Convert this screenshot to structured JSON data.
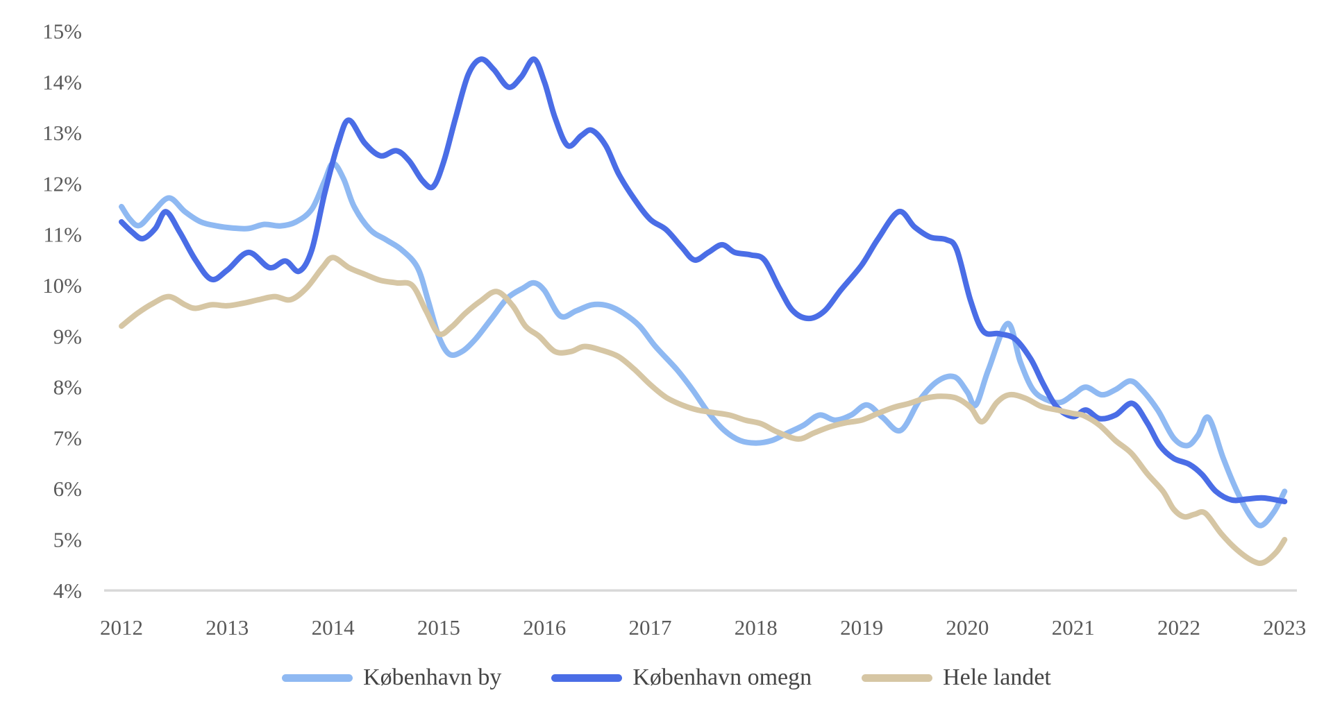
{
  "chart_data": {
    "type": "line",
    "title": "",
    "xlabel": "",
    "ylabel": "",
    "grid": false,
    "legend_position": "bottom",
    "x_ticks": [
      2012,
      2013,
      2014,
      2015,
      2016,
      2017,
      2018,
      2019,
      2020,
      2021,
      2022,
      2023
    ],
    "y_ticks": [
      "15%",
      "14%",
      "13%",
      "12%",
      "11%",
      "10%",
      "9%",
      "8%",
      "7%",
      "6%",
      "5%",
      "4%"
    ],
    "y_tick_values": [
      15,
      14,
      13,
      12,
      11,
      10,
      9,
      8,
      7,
      6,
      5,
      4
    ],
    "ylim": [
      4,
      15
    ],
    "xlim": [
      2012,
      2023
    ],
    "axis_line_color": "#d9d9d9",
    "tick_label_color": "#595959",
    "series": [
      {
        "name": "København by",
        "color": "#8fb9f2",
        "points": [
          [
            2012.0,
            11.55
          ],
          [
            2012.08,
            11.3
          ],
          [
            2012.17,
            11.18
          ],
          [
            2012.3,
            11.45
          ],
          [
            2012.45,
            11.72
          ],
          [
            2012.6,
            11.45
          ],
          [
            2012.75,
            11.25
          ],
          [
            2012.9,
            11.17
          ],
          [
            2013.05,
            11.13
          ],
          [
            2013.2,
            11.12
          ],
          [
            2013.35,
            11.2
          ],
          [
            2013.5,
            11.17
          ],
          [
            2013.65,
            11.25
          ],
          [
            2013.8,
            11.5
          ],
          [
            2013.92,
            12.05
          ],
          [
            2014.0,
            12.4
          ],
          [
            2014.1,
            12.1
          ],
          [
            2014.2,
            11.55
          ],
          [
            2014.35,
            11.1
          ],
          [
            2014.5,
            10.9
          ],
          [
            2014.65,
            10.7
          ],
          [
            2014.8,
            10.35
          ],
          [
            2014.9,
            9.7
          ],
          [
            2015.0,
            9.0
          ],
          [
            2015.1,
            8.65
          ],
          [
            2015.22,
            8.7
          ],
          [
            2015.35,
            8.95
          ],
          [
            2015.5,
            9.35
          ],
          [
            2015.65,
            9.75
          ],
          [
            2015.8,
            9.95
          ],
          [
            2015.9,
            10.05
          ],
          [
            2016.0,
            9.9
          ],
          [
            2016.15,
            9.4
          ],
          [
            2016.3,
            9.5
          ],
          [
            2016.45,
            9.62
          ],
          [
            2016.6,
            9.6
          ],
          [
            2016.75,
            9.45
          ],
          [
            2016.9,
            9.2
          ],
          [
            2017.05,
            8.8
          ],
          [
            2017.25,
            8.35
          ],
          [
            2017.4,
            7.95
          ],
          [
            2017.55,
            7.5
          ],
          [
            2017.7,
            7.15
          ],
          [
            2017.85,
            6.95
          ],
          [
            2018.0,
            6.9
          ],
          [
            2018.15,
            6.95
          ],
          [
            2018.3,
            7.1
          ],
          [
            2018.45,
            7.25
          ],
          [
            2018.6,
            7.45
          ],
          [
            2018.75,
            7.35
          ],
          [
            2018.9,
            7.45
          ],
          [
            2019.05,
            7.65
          ],
          [
            2019.2,
            7.4
          ],
          [
            2019.37,
            7.15
          ],
          [
            2019.55,
            7.75
          ],
          [
            2019.72,
            8.12
          ],
          [
            2019.88,
            8.2
          ],
          [
            2020.0,
            7.9
          ],
          [
            2020.08,
            7.65
          ],
          [
            2020.2,
            8.35
          ],
          [
            2020.38,
            9.25
          ],
          [
            2020.5,
            8.5
          ],
          [
            2020.62,
            7.95
          ],
          [
            2020.75,
            7.75
          ],
          [
            2020.88,
            7.7
          ],
          [
            2021.0,
            7.85
          ],
          [
            2021.12,
            8.0
          ],
          [
            2021.27,
            7.85
          ],
          [
            2021.4,
            7.95
          ],
          [
            2021.54,
            8.12
          ],
          [
            2021.65,
            7.95
          ],
          [
            2021.8,
            7.55
          ],
          [
            2021.95,
            7.0
          ],
          [
            2022.08,
            6.85
          ],
          [
            2022.18,
            7.05
          ],
          [
            2022.28,
            7.4
          ],
          [
            2022.42,
            6.6
          ],
          [
            2022.55,
            5.95
          ],
          [
            2022.68,
            5.45
          ],
          [
            2022.78,
            5.28
          ],
          [
            2022.9,
            5.55
          ],
          [
            2023.0,
            5.95
          ]
        ]
      },
      {
        "name": "København omegn",
        "color": "#4a6de6",
        "points": [
          [
            2012.0,
            11.25
          ],
          [
            2012.1,
            11.05
          ],
          [
            2012.2,
            10.92
          ],
          [
            2012.32,
            11.12
          ],
          [
            2012.42,
            11.45
          ],
          [
            2012.55,
            11.05
          ],
          [
            2012.7,
            10.5
          ],
          [
            2012.85,
            10.12
          ],
          [
            2013.0,
            10.3
          ],
          [
            2013.2,
            10.65
          ],
          [
            2013.4,
            10.35
          ],
          [
            2013.55,
            10.48
          ],
          [
            2013.68,
            10.28
          ],
          [
            2013.8,
            10.7
          ],
          [
            2013.92,
            11.8
          ],
          [
            2014.05,
            12.8
          ],
          [
            2014.15,
            13.25
          ],
          [
            2014.3,
            12.8
          ],
          [
            2014.45,
            12.55
          ],
          [
            2014.6,
            12.65
          ],
          [
            2014.72,
            12.45
          ],
          [
            2014.85,
            12.05
          ],
          [
            2014.95,
            11.95
          ],
          [
            2015.05,
            12.45
          ],
          [
            2015.16,
            13.3
          ],
          [
            2015.28,
            14.15
          ],
          [
            2015.4,
            14.45
          ],
          [
            2015.52,
            14.25
          ],
          [
            2015.66,
            13.9
          ],
          [
            2015.78,
            14.1
          ],
          [
            2015.9,
            14.45
          ],
          [
            2016.0,
            14.0
          ],
          [
            2016.1,
            13.3
          ],
          [
            2016.22,
            12.75
          ],
          [
            2016.35,
            12.95
          ],
          [
            2016.45,
            13.05
          ],
          [
            2016.58,
            12.75
          ],
          [
            2016.7,
            12.2
          ],
          [
            2016.85,
            11.7
          ],
          [
            2017.0,
            11.3
          ],
          [
            2017.15,
            11.1
          ],
          [
            2017.3,
            10.75
          ],
          [
            2017.42,
            10.5
          ],
          [
            2017.55,
            10.65
          ],
          [
            2017.68,
            10.8
          ],
          [
            2017.8,
            10.65
          ],
          [
            2017.95,
            10.6
          ],
          [
            2018.08,
            10.5
          ],
          [
            2018.22,
            9.95
          ],
          [
            2018.35,
            9.5
          ],
          [
            2018.5,
            9.35
          ],
          [
            2018.65,
            9.5
          ],
          [
            2018.8,
            9.9
          ],
          [
            2019.0,
            10.4
          ],
          [
            2019.15,
            10.9
          ],
          [
            2019.35,
            11.45
          ],
          [
            2019.5,
            11.15
          ],
          [
            2019.65,
            10.95
          ],
          [
            2019.8,
            10.9
          ],
          [
            2019.9,
            10.7
          ],
          [
            2020.03,
            9.7
          ],
          [
            2020.15,
            9.1
          ],
          [
            2020.3,
            9.05
          ],
          [
            2020.45,
            8.95
          ],
          [
            2020.6,
            8.55
          ],
          [
            2020.72,
            8.05
          ],
          [
            2020.85,
            7.6
          ],
          [
            2021.0,
            7.42
          ],
          [
            2021.12,
            7.55
          ],
          [
            2021.25,
            7.38
          ],
          [
            2021.4,
            7.45
          ],
          [
            2021.56,
            7.68
          ],
          [
            2021.7,
            7.3
          ],
          [
            2021.82,
            6.85
          ],
          [
            2021.95,
            6.6
          ],
          [
            2022.1,
            6.48
          ],
          [
            2022.22,
            6.28
          ],
          [
            2022.35,
            5.95
          ],
          [
            2022.5,
            5.78
          ],
          [
            2022.65,
            5.8
          ],
          [
            2022.8,
            5.82
          ],
          [
            2023.0,
            5.75
          ]
        ]
      },
      {
        "name": "Hele landet",
        "color": "#d6c6a4",
        "points": [
          [
            2012.0,
            9.2
          ],
          [
            2012.15,
            9.45
          ],
          [
            2012.3,
            9.65
          ],
          [
            2012.45,
            9.78
          ],
          [
            2012.6,
            9.62
          ],
          [
            2012.7,
            9.55
          ],
          [
            2012.85,
            9.62
          ],
          [
            2013.0,
            9.6
          ],
          [
            2013.15,
            9.65
          ],
          [
            2013.3,
            9.72
          ],
          [
            2013.45,
            9.78
          ],
          [
            2013.6,
            9.72
          ],
          [
            2013.75,
            9.95
          ],
          [
            2013.9,
            10.35
          ],
          [
            2014.0,
            10.55
          ],
          [
            2014.15,
            10.35
          ],
          [
            2014.3,
            10.22
          ],
          [
            2014.45,
            10.1
          ],
          [
            2014.6,
            10.05
          ],
          [
            2014.75,
            10.0
          ],
          [
            2014.88,
            9.5
          ],
          [
            2015.0,
            9.05
          ],
          [
            2015.12,
            9.18
          ],
          [
            2015.25,
            9.45
          ],
          [
            2015.4,
            9.7
          ],
          [
            2015.55,
            9.88
          ],
          [
            2015.7,
            9.6
          ],
          [
            2015.82,
            9.2
          ],
          [
            2015.95,
            9.0
          ],
          [
            2016.1,
            8.7
          ],
          [
            2016.25,
            8.7
          ],
          [
            2016.38,
            8.8
          ],
          [
            2016.55,
            8.72
          ],
          [
            2016.7,
            8.6
          ],
          [
            2016.85,
            8.35
          ],
          [
            2017.0,
            8.05
          ],
          [
            2017.15,
            7.8
          ],
          [
            2017.3,
            7.65
          ],
          [
            2017.45,
            7.55
          ],
          [
            2017.6,
            7.5
          ],
          [
            2017.75,
            7.45
          ],
          [
            2017.9,
            7.35
          ],
          [
            2018.05,
            7.28
          ],
          [
            2018.2,
            7.12
          ],
          [
            2018.4,
            6.98
          ],
          [
            2018.55,
            7.1
          ],
          [
            2018.7,
            7.22
          ],
          [
            2018.85,
            7.3
          ],
          [
            2019.0,
            7.35
          ],
          [
            2019.15,
            7.48
          ],
          [
            2019.3,
            7.6
          ],
          [
            2019.45,
            7.68
          ],
          [
            2019.6,
            7.78
          ],
          [
            2019.75,
            7.82
          ],
          [
            2019.9,
            7.78
          ],
          [
            2020.03,
            7.6
          ],
          [
            2020.14,
            7.32
          ],
          [
            2020.28,
            7.7
          ],
          [
            2020.4,
            7.85
          ],
          [
            2020.55,
            7.78
          ],
          [
            2020.7,
            7.62
          ],
          [
            2020.85,
            7.55
          ],
          [
            2021.0,
            7.48
          ],
          [
            2021.1,
            7.44
          ],
          [
            2021.25,
            7.25
          ],
          [
            2021.4,
            6.95
          ],
          [
            2021.55,
            6.7
          ],
          [
            2021.7,
            6.3
          ],
          [
            2021.85,
            5.95
          ],
          [
            2021.95,
            5.6
          ],
          [
            2022.05,
            5.45
          ],
          [
            2022.15,
            5.5
          ],
          [
            2022.25,
            5.52
          ],
          [
            2022.4,
            5.12
          ],
          [
            2022.55,
            4.8
          ],
          [
            2022.7,
            4.58
          ],
          [
            2022.8,
            4.55
          ],
          [
            2022.92,
            4.75
          ],
          [
            2023.0,
            5.0
          ]
        ]
      }
    ]
  }
}
